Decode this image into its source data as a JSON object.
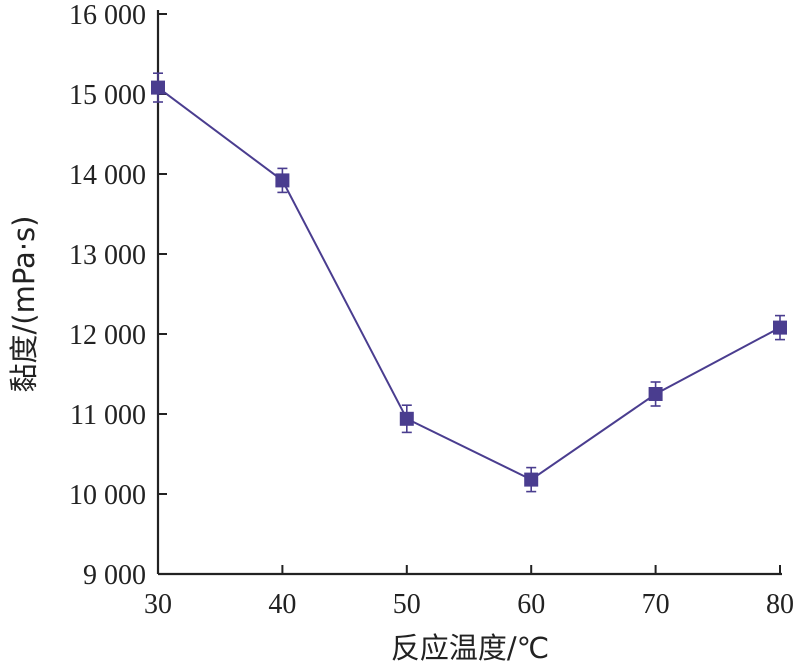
{
  "chart_data": {
    "type": "line",
    "xlabel": "反应温度/℃",
    "ylabel": "黏度/(mPa·s)",
    "xlim": [
      30,
      80
    ],
    "ylim": [
      9000,
      16000
    ],
    "x_ticks": [
      30,
      40,
      50,
      60,
      70,
      80
    ],
    "x_tick_labels": [
      "30",
      "40",
      "50",
      "60",
      "70",
      "80"
    ],
    "y_ticks": [
      9000,
      10000,
      11000,
      12000,
      13000,
      14000,
      15000,
      16000
    ],
    "y_tick_labels": [
      "9 000",
      "10 000",
      "11 000",
      "12 000",
      "13 000",
      "14 000",
      "15 000",
      "16 000"
    ],
    "grid": false,
    "series": [
      {
        "x": [
          30,
          40,
          50,
          60,
          70,
          80
        ],
        "values": [
          15080,
          13920,
          10940,
          10180,
          11250,
          12080
        ],
        "error": [
          180,
          150,
          170,
          150,
          150,
          150
        ],
        "color": "#4a3d8f",
        "marker": "square"
      }
    ]
  }
}
